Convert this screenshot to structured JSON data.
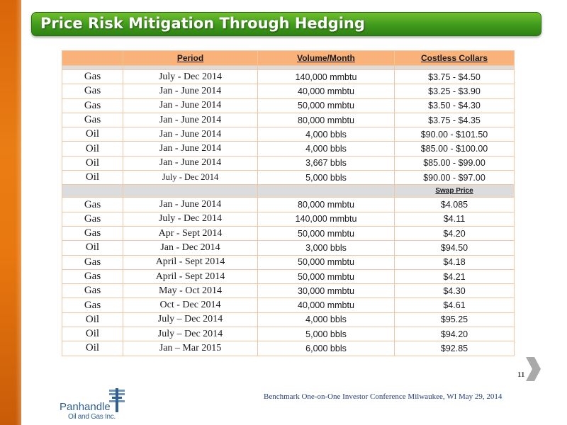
{
  "title": "Price Risk Mitigation Through Hedging",
  "table": {
    "headers": {
      "period": "Period",
      "volume": "Volume/Month",
      "collars": "Costless Collars"
    },
    "collar_rows": [
      {
        "type": "Gas",
        "period": "July - Dec 2014",
        "volume": "140,000 mmbtu",
        "price": "$3.75 - $4.50"
      },
      {
        "type": "Gas",
        "period": "Jan - June 2014",
        "volume": "40,000 mmbtu",
        "price": "$3.25 - $3.90"
      },
      {
        "type": "Gas",
        "period": "Jan - June 2014",
        "volume": "50,000 mmbtu",
        "price": "$3.50 - $4.30"
      },
      {
        "type": "Gas",
        "period": "Jan - June 2014",
        "volume": "80,000 mmbtu",
        "price": "$3.75 - $4.35"
      },
      {
        "type": "Oil",
        "period": "Jan - June 2014",
        "volume": "4,000 bbls",
        "price": "$90.00 - $101.50"
      },
      {
        "type": "Oil",
        "period": "Jan - June 2014",
        "volume": "4,000 bbls",
        "price": "$85.00 - $100.00"
      },
      {
        "type": "Oil",
        "period": "Jan - June 2014",
        "volume": "3,667 bbls",
        "price": "$85.00 - $99.00"
      },
      {
        "type": "Oil",
        "period": "July - Dec 2014",
        "volume": "5,000 bbls",
        "price": "$90.00  - $97.00"
      }
    ],
    "swap_header": "Swap Price",
    "swap_rows": [
      {
        "type": "Gas",
        "period": "Jan - June 2014",
        "volume": "80,000 mmbtu",
        "price": "$4.085"
      },
      {
        "type": "Gas",
        "period": "July - Dec 2014",
        "volume": "140,000 mmbtu",
        "price": "$4.11"
      },
      {
        "type": "Gas",
        "period": "Apr - Sept 2014",
        "volume": "50,000 mmbtu",
        "price": "$4.20"
      },
      {
        "type": "Oil",
        "period": "Jan - Dec 2014",
        "volume": "3,000 bbls",
        "price": "$94.50"
      },
      {
        "type": "Gas",
        "period": "April - Sept 2014",
        "volume": "50,000 mmbtu",
        "price": "$4.18"
      },
      {
        "type": "Gas",
        "period": "April - Sept 2014",
        "volume": "50,000 mmbtu",
        "price": "$4.21"
      },
      {
        "type": "Gas",
        "period": "May - Oct 2014",
        "volume": "30,000 mmbtu",
        "price": "$4.30"
      },
      {
        "type": "Gas",
        "period": "Oct - Dec 2014",
        "volume": "40,000 mmbtu",
        "price": "$4.61"
      },
      {
        "type": "Oil",
        "period": "July – Dec 2014",
        "volume": "4,000 bbls",
        "price": "$95.25"
      },
      {
        "type": "Oil",
        "period": "July – Dec 2014",
        "volume": "5,000 bbls",
        "price": "$94.20"
      },
      {
        "type": "Oil",
        "period": "Jan – Mar 2015",
        "volume": "6,000 bbls",
        "price": "$92.85"
      }
    ]
  },
  "page_number": "11",
  "footer": "Benchmark One-on-One Investor Conference Milwaukee, WI  May 29, 2014",
  "logo": {
    "name": "Panhandle",
    "sub": "Oil and Gas Inc."
  },
  "colors": {
    "title_bar": "#3f9a1c",
    "header_fill": "#f8b27a",
    "left_bar": "#e8770f",
    "footer_text": "#24407a",
    "logo": "#2f5f93"
  },
  "icons": {
    "next": "chevron-right-icon",
    "logo": "panhandle-logo-mark"
  }
}
